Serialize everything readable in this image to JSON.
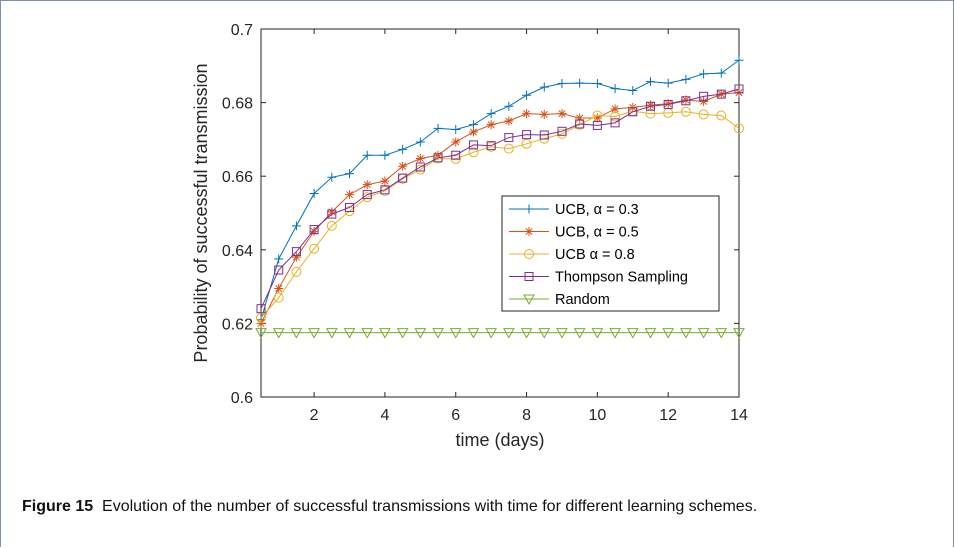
{
  "figure": {
    "label": "Figure 15",
    "text": "Evolution of the number of successful transmissions with time for different learning schemes."
  },
  "chart_data": {
    "type": "line",
    "xlabel": "time (days)",
    "ylabel": "Probability of successful transmission",
    "xlim": [
      0.5,
      14
    ],
    "ylim": [
      0.6,
      0.7
    ],
    "xticks": [
      2,
      4,
      6,
      8,
      10,
      12,
      14
    ],
    "yticks": [
      0.6,
      0.62,
      0.64,
      0.66,
      0.68,
      0.7
    ],
    "ytick_labels": [
      "0.6",
      "0.62",
      "0.64",
      "0.66",
      "0.68",
      "0.7"
    ],
    "grid": false,
    "legend_position": "center-right",
    "x": [
      0.5,
      1,
      1.5,
      2,
      2.5,
      3,
      3.5,
      4,
      4.5,
      5,
      5.5,
      6,
      6.5,
      7,
      7.5,
      8,
      8.5,
      9,
      9.5,
      10,
      10.5,
      11,
      11.5,
      12,
      12.5,
      13,
      13.5,
      14
    ],
    "series": [
      {
        "name": "UCB, α = 0.3",
        "color": "#0072BD",
        "marker": "plus",
        "values": [
          0.621,
          0.6375,
          0.6465,
          0.6553,
          0.6597,
          0.6607,
          0.6657,
          0.6657,
          0.6673,
          0.6693,
          0.673,
          0.6727,
          0.674,
          0.677,
          0.679,
          0.682,
          0.6842,
          0.6852,
          0.6853,
          0.6852,
          0.6838,
          0.6833,
          0.6857,
          0.6853,
          0.6863,
          0.6878,
          0.688,
          0.6915
        ]
      },
      {
        "name": "UCB, α = 0.5",
        "color": "#D95319",
        "marker": "asterisk",
        "values": [
          0.62,
          0.6295,
          0.638,
          0.645,
          0.6503,
          0.655,
          0.6577,
          0.6587,
          0.6627,
          0.6648,
          0.6657,
          0.6693,
          0.672,
          0.674,
          0.675,
          0.677,
          0.6768,
          0.677,
          0.6758,
          0.6758,
          0.6783,
          0.6787,
          0.6793,
          0.6797,
          0.6807,
          0.6803,
          0.6823,
          0.6827
        ]
      },
      {
        "name": "UCB α = 0.8",
        "color": "#EDB120",
        "marker": "circle",
        "values": [
          0.6215,
          0.627,
          0.634,
          0.6403,
          0.6465,
          0.6505,
          0.6543,
          0.656,
          0.6593,
          0.6618,
          0.6648,
          0.6647,
          0.6665,
          0.668,
          0.6675,
          0.6688,
          0.6702,
          0.6715,
          0.674,
          0.6765,
          0.6762,
          0.6777,
          0.677,
          0.6772,
          0.6775,
          0.6768,
          0.6765,
          0.673
        ]
      },
      {
        "name": "Thompson Sampling",
        "color": "#7E2F8E",
        "marker": "square",
        "values": [
          0.624,
          0.6345,
          0.6395,
          0.6455,
          0.6497,
          0.6515,
          0.655,
          0.6563,
          0.6595,
          0.6625,
          0.665,
          0.6657,
          0.6685,
          0.6683,
          0.6705,
          0.6713,
          0.6712,
          0.6722,
          0.6742,
          0.6738,
          0.6745,
          0.6775,
          0.679,
          0.6795,
          0.6805,
          0.6817,
          0.6823,
          0.6837
        ]
      },
      {
        "name": "Random",
        "color": "#77AC30",
        "marker": "triangle-down",
        "values": [
          0.6175,
          0.6175,
          0.6175,
          0.6175,
          0.6175,
          0.6175,
          0.6175,
          0.6175,
          0.6175,
          0.6175,
          0.6175,
          0.6175,
          0.6175,
          0.6175,
          0.6175,
          0.6175,
          0.6175,
          0.6175,
          0.6175,
          0.6175,
          0.6175,
          0.6175,
          0.6175,
          0.6175,
          0.6175,
          0.6175,
          0.6175,
          0.6175
        ]
      }
    ]
  }
}
